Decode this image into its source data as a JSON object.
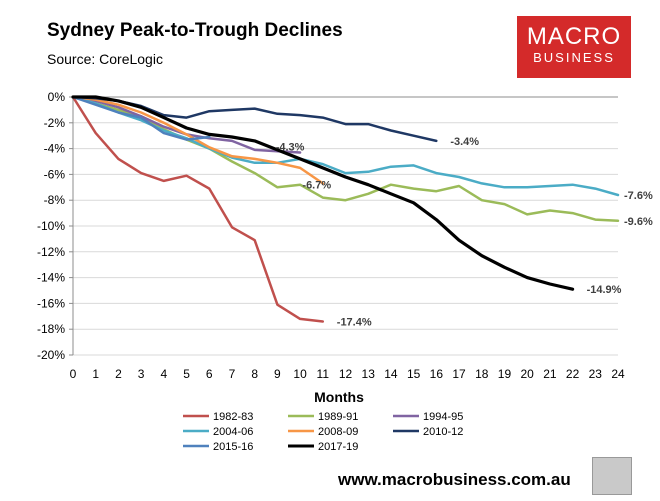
{
  "header": {
    "title": "Sydney Peak-to-Trough Declines",
    "source": "Source: CoreLogic"
  },
  "logo": {
    "line1": "MACRO",
    "line2": "BUSINESS"
  },
  "footer": {
    "url": "www.macrobusiness.com.au"
  },
  "chart_data": {
    "type": "line",
    "xlabel": "Months",
    "ylabel": "",
    "xlim": [
      0,
      24
    ],
    "ylim": [
      -20,
      0
    ],
    "y_ticks": [
      0,
      -2,
      -4,
      -6,
      -8,
      -10,
      -12,
      -14,
      -16,
      -18,
      -20
    ],
    "y_tick_labels": [
      "0%",
      "-2%",
      "-4%",
      "-6%",
      "-8%",
      "-10%",
      "-12%",
      "-14%",
      "-16%",
      "-18%",
      "-20%"
    ],
    "x_ticks": [
      0,
      1,
      2,
      3,
      4,
      5,
      6,
      7,
      8,
      9,
      10,
      11,
      12,
      13,
      14,
      15,
      16,
      17,
      18,
      19,
      20,
      21,
      22,
      23,
      24
    ],
    "grid": "horizontal",
    "legend_position": "bottom",
    "series": [
      {
        "name": "1982-83",
        "color": "#c0504d",
        "width": 2.5,
        "x": [
          0,
          1,
          2,
          3,
          4,
          5,
          6,
          7,
          8,
          9,
          10,
          11
        ],
        "values": [
          0,
          -2.8,
          -4.8,
          -5.9,
          -6.5,
          -6.1,
          -7.1,
          -10.1,
          -11.1,
          -16.1,
          -17.2,
          -17.4
        ],
        "end_label": "-17.4%"
      },
      {
        "name": "1989-91",
        "color": "#9bbb59",
        "width": 2.5,
        "x": [
          0,
          1,
          2,
          3,
          4,
          5,
          6,
          7,
          8,
          9,
          10,
          11,
          12,
          13,
          14,
          15,
          16,
          17,
          18,
          19,
          20,
          21,
          22,
          23,
          24
        ],
        "values": [
          0,
          -0.5,
          -1.0,
          -1.5,
          -2.5,
          -3.3,
          -4.0,
          -5.0,
          -5.9,
          -7.0,
          -6.8,
          -7.8,
          -8.0,
          -7.5,
          -6.8,
          -7.1,
          -7.3,
          -6.9,
          -8.0,
          -8.3,
          -9.1,
          -8.8,
          -9.0,
          -9.5,
          -9.6
        ],
        "end_label": "-9.6%"
      },
      {
        "name": "1994-95",
        "color": "#8064a2",
        "width": 2.5,
        "x": [
          0,
          1,
          2,
          3,
          4,
          5,
          6,
          7,
          8,
          9,
          10
        ],
        "values": [
          0,
          -0.3,
          -0.8,
          -1.5,
          -2.3,
          -2.9,
          -3.2,
          -3.4,
          -4.1,
          -4.2,
          -4.3
        ],
        "end_label": "-4.3%"
      },
      {
        "name": "2004-06",
        "color": "#4bacc6",
        "width": 2.5,
        "x": [
          0,
          1,
          2,
          3,
          4,
          5,
          6,
          7,
          8,
          9,
          10,
          11,
          12,
          13,
          14,
          15,
          16,
          17,
          18,
          19,
          20,
          21,
          22,
          23,
          24
        ],
        "values": [
          0,
          -0.5,
          -1.2,
          -1.8,
          -2.6,
          -3.2,
          -4.0,
          -4.7,
          -5.1,
          -5.1,
          -4.8,
          -5.2,
          -5.9,
          -5.8,
          -5.4,
          -5.3,
          -5.9,
          -6.2,
          -6.7,
          -7.0,
          -7.0,
          -6.9,
          -6.8,
          -7.1,
          -7.6
        ],
        "end_label": "-7.6%"
      },
      {
        "name": "2008-09",
        "color": "#f79646",
        "width": 2.5,
        "x": [
          0,
          1,
          2,
          3,
          4,
          5,
          6,
          7,
          8,
          9,
          10,
          11
        ],
        "values": [
          0,
          -0.2,
          -0.6,
          -1.2,
          -2.0,
          -2.9,
          -3.9,
          -4.6,
          -4.8,
          -5.1,
          -5.5,
          -6.7
        ],
        "end_label": "-6.7%"
      },
      {
        "name": "2010-12",
        "color": "#1f3864",
        "width": 2.5,
        "x": [
          0,
          1,
          2,
          3,
          4,
          5,
          6,
          7,
          8,
          9,
          10,
          11,
          12,
          13,
          14,
          15,
          16
        ],
        "values": [
          0,
          -0.1,
          -0.3,
          -0.7,
          -1.4,
          -1.6,
          -1.1,
          -1.0,
          -0.9,
          -1.3,
          -1.4,
          -1.6,
          -2.1,
          -2.1,
          -2.6,
          -3.0,
          -3.4
        ],
        "end_label": "-3.4%"
      },
      {
        "name": "2015-16",
        "color": "#4f81bd",
        "width": 2.5,
        "x": [
          0,
          1,
          2,
          3,
          4,
          5,
          6
        ],
        "values": [
          0,
          -0.6,
          -1.2,
          -1.6,
          -2.8,
          -3.3,
          -3.1
        ],
        "end_label": ""
      },
      {
        "name": "2017-19",
        "color": "#000000",
        "width": 3.2,
        "x": [
          0,
          1,
          2,
          3,
          4,
          5,
          6,
          7,
          8,
          9,
          10,
          11,
          12,
          13,
          14,
          15,
          16,
          17,
          18,
          19,
          20,
          21,
          22
        ],
        "values": [
          0,
          0,
          -0.3,
          -0.8,
          -1.6,
          -2.4,
          -2.9,
          -3.1,
          -3.4,
          -4.1,
          -4.8,
          -5.5,
          -6.2,
          -6.8,
          -7.5,
          -8.2,
          -9.5,
          -11.1,
          -12.3,
          -13.2,
          -14.0,
          -14.5,
          -14.9
        ],
        "end_label": "-14.9%"
      }
    ]
  }
}
